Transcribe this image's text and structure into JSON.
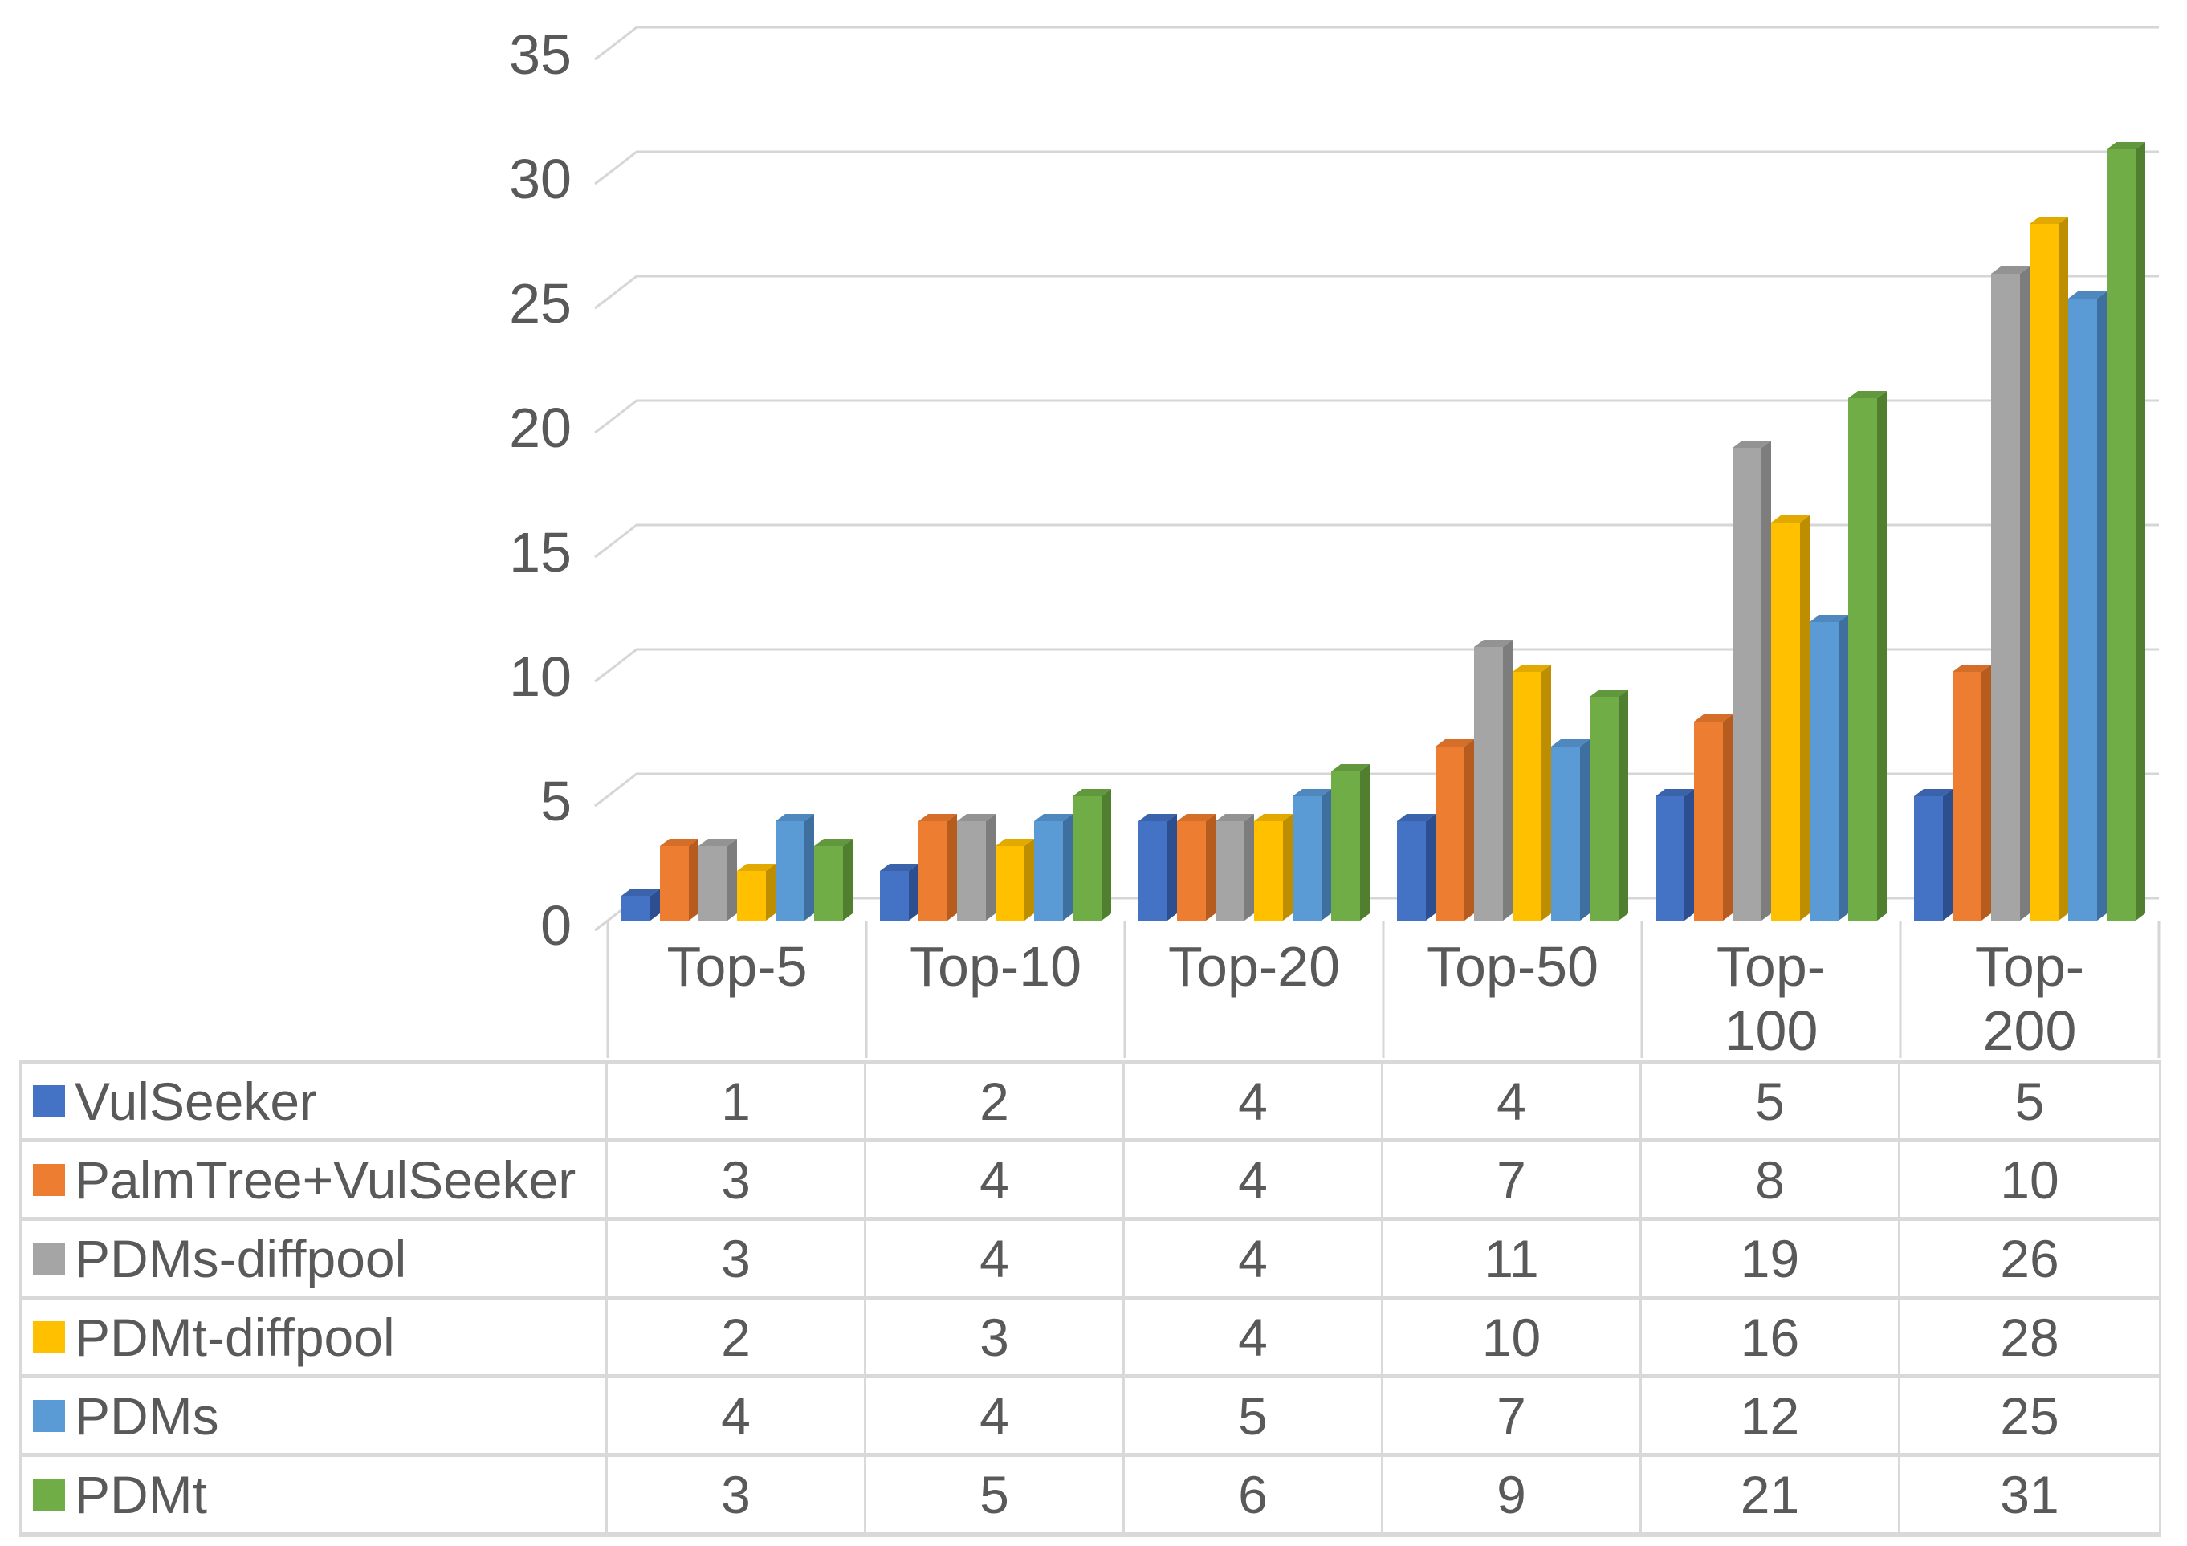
{
  "chart_data": {
    "type": "bar",
    "style": "3d-clustered-column",
    "title": "",
    "xlabel": "",
    "ylabel": "",
    "grid": true,
    "legend_position": "table-left-below",
    "ylim": [
      0,
      35
    ],
    "yticks": [
      "0",
      "5",
      "10",
      "15",
      "20",
      "25",
      "30",
      "35"
    ],
    "categories": [
      "Top-5",
      "Top-10",
      "Top-20",
      "Top-50",
      "Top-100",
      "Top-200"
    ],
    "category_label_lines": [
      [
        "Top-5"
      ],
      [
        "Top-10"
      ],
      [
        "Top-20"
      ],
      [
        "Top-50"
      ],
      [
        "Top-",
        "100"
      ],
      [
        "Top-",
        "200"
      ]
    ],
    "series": [
      {
        "name": "VulSeeker",
        "values": [
          1,
          2,
          4,
          4,
          5,
          5
        ],
        "color": "#4472C4",
        "top_color": "#3A63AC",
        "side_color": "#2E4F8F"
      },
      {
        "name": "PalmTree+VulSeeker",
        "values": [
          3,
          4,
          4,
          7,
          8,
          10
        ],
        "color": "#ED7D31",
        "top_color": "#D56E28",
        "side_color": "#B55C1E"
      },
      {
        "name": "PDMs-diffpool",
        "values": [
          3,
          4,
          4,
          11,
          19,
          26
        ],
        "color": "#A5A5A5",
        "top_color": "#939393",
        "side_color": "#7D7D7D"
      },
      {
        "name": "PDMt-diffpool",
        "values": [
          2,
          3,
          4,
          10,
          16,
          28
        ],
        "color": "#FFC000",
        "top_color": "#E2AA00",
        "side_color": "#BC8E00"
      },
      {
        "name": "PDMs",
        "values": [
          4,
          4,
          5,
          7,
          12,
          25
        ],
        "color": "#5B9BD5",
        "top_color": "#4E88BE",
        "side_color": "#3E6F9E"
      },
      {
        "name": "PDMt",
        "values": [
          3,
          5,
          6,
          9,
          21,
          31
        ],
        "color": "#70AD47",
        "top_color": "#62983D",
        "side_color": "#50802F"
      }
    ]
  },
  "colors": {
    "background": "#FFFFFF",
    "text": "#595959",
    "gridline": "#D6D6D6",
    "table_border": "#D9D9D9"
  }
}
